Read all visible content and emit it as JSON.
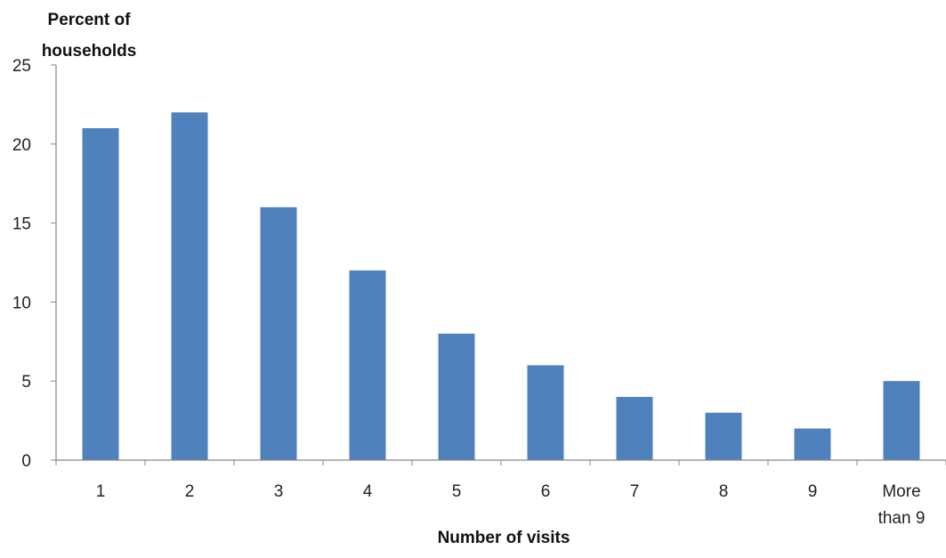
{
  "chart_data": {
    "type": "bar",
    "ylabel": "Percent of households",
    "ylabel_lines": [
      "Percent of",
      "households"
    ],
    "xlabel": "Number of visits",
    "categories": [
      "1",
      "2",
      "3",
      "4",
      "5",
      "6",
      "7",
      "8",
      "9",
      "More than 9"
    ],
    "category_label_lines": [
      [
        "1"
      ],
      [
        "2"
      ],
      [
        "3"
      ],
      [
        "4"
      ],
      [
        "5"
      ],
      [
        "6"
      ],
      [
        "7"
      ],
      [
        "8"
      ],
      [
        "9"
      ],
      [
        "More",
        "than 9"
      ]
    ],
    "values": [
      21,
      22,
      16,
      12,
      8,
      6,
      4,
      3,
      2,
      5
    ],
    "ylim": [
      0,
      25
    ],
    "yticks": [
      "0",
      "5",
      "10",
      "15",
      "20",
      "25"
    ],
    "grid": false,
    "legend": "none",
    "colors": {
      "bar": "#4f81bd",
      "axis": "#868686"
    }
  }
}
